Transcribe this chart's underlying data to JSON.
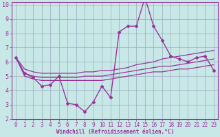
{
  "x": [
    0,
    1,
    2,
    3,
    4,
    5,
    6,
    7,
    8,
    9,
    10,
    11,
    12,
    13,
    14,
    15,
    16,
    17,
    18,
    19,
    20,
    21,
    22,
    23
  ],
  "y_main": [
    6.3,
    5.2,
    4.9,
    4.3,
    4.4,
    5.0,
    3.1,
    3.0,
    2.5,
    3.2,
    4.3,
    3.5,
    8.1,
    8.5,
    8.5,
    10.5,
    8.5,
    7.5,
    6.4,
    6.2,
    6.0,
    6.3,
    6.4,
    5.4
  ],
  "y_upper": [
    6.3,
    5.5,
    5.3,
    5.2,
    5.2,
    5.2,
    5.2,
    5.2,
    5.3,
    5.3,
    5.4,
    5.4,
    5.5,
    5.6,
    5.8,
    5.9,
    6.0,
    6.2,
    6.3,
    6.4,
    6.5,
    6.6,
    6.7,
    6.8
  ],
  "y_mid": [
    6.3,
    5.2,
    5.0,
    4.9,
    4.9,
    4.9,
    4.9,
    4.9,
    5.0,
    5.0,
    5.0,
    5.1,
    5.2,
    5.3,
    5.4,
    5.5,
    5.6,
    5.7,
    5.7,
    5.8,
    5.9,
    6.0,
    6.1,
    6.2
  ],
  "y_lower": [
    6.3,
    5.0,
    4.8,
    4.7,
    4.7,
    4.7,
    4.7,
    4.7,
    4.7,
    4.7,
    4.7,
    4.8,
    4.9,
    5.0,
    5.1,
    5.2,
    5.3,
    5.3,
    5.4,
    5.5,
    5.5,
    5.6,
    5.7,
    5.8
  ],
  "line_color": "#993399",
  "bg_color": "#c8e8e8",
  "grid_color": "#99aabb",
  "xlabel": "Windchill (Refroidissement éolien,°C)",
  "ylim": [
    2,
    10
  ],
  "xlim": [
    -0.5,
    23.5
  ],
  "yticks": [
    2,
    3,
    4,
    5,
    6,
    7,
    8,
    9,
    10
  ],
  "xticks": [
    0,
    1,
    2,
    3,
    4,
    5,
    6,
    7,
    8,
    9,
    10,
    11,
    12,
    13,
    14,
    15,
    16,
    17,
    18,
    19,
    20,
    21,
    22,
    23
  ],
  "tick_fontsize": 5.5,
  "xlabel_fontsize": 5.5
}
